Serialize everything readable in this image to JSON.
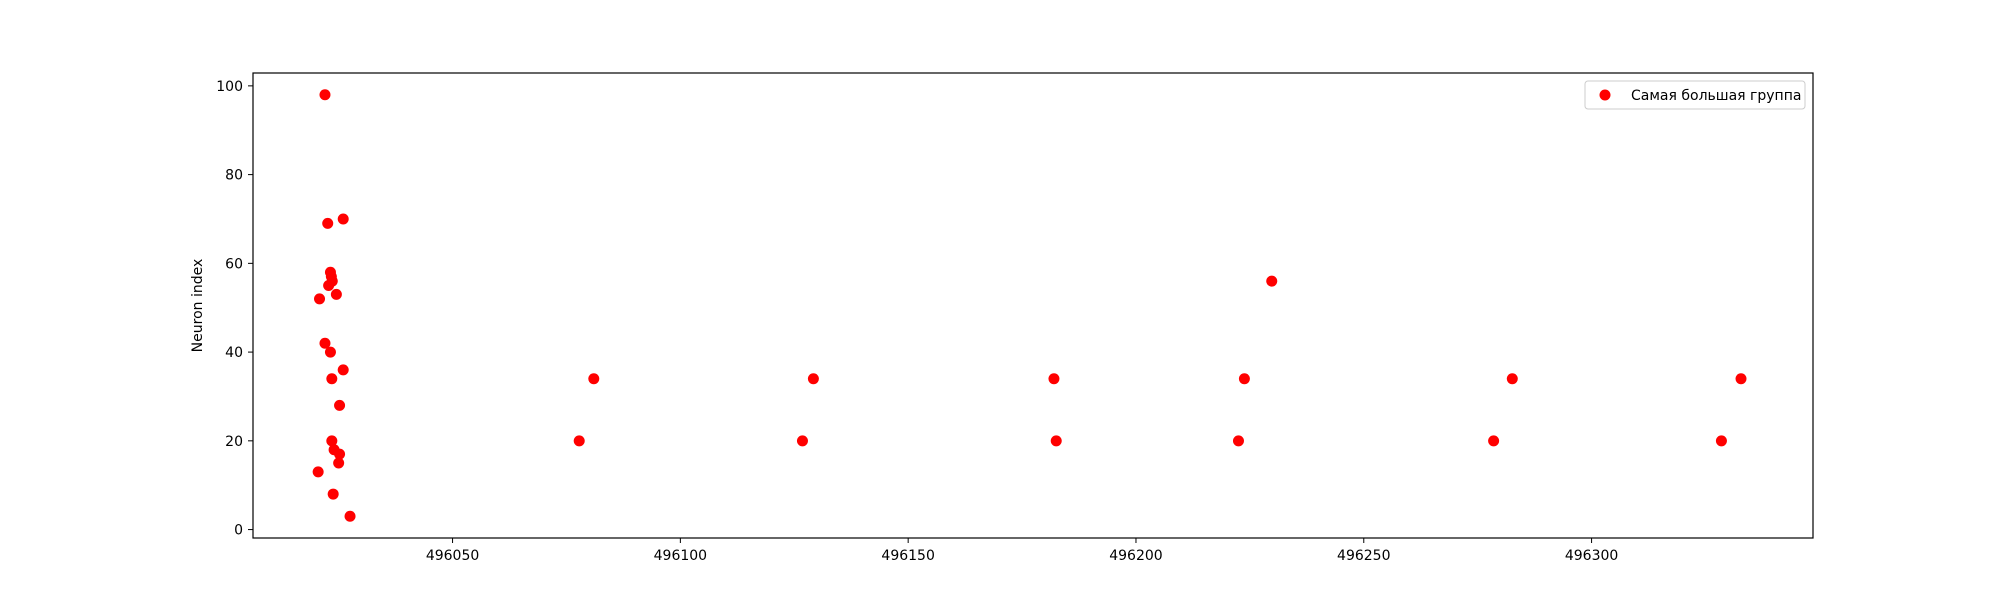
{
  "chart_data": {
    "type": "scatter",
    "title": "",
    "xlabel": "",
    "ylabel": "Neuron index",
    "xlim": [
      496006.2,
      496348.6
    ],
    "ylim": [
      -1.9,
      102.9
    ],
    "xticks": [
      496050,
      496100,
      496150,
      496200,
      496250,
      496300
    ],
    "yticks": [
      0,
      20,
      40,
      60,
      80,
      100
    ],
    "grid": false,
    "legend_position": "top-right",
    "series": [
      {
        "name": "Самая большая группа",
        "color": "#ff0000",
        "points": [
          [
            496022.0,
            98
          ],
          [
            496022.6,
            69
          ],
          [
            496026.0,
            70
          ],
          [
            496023.2,
            58
          ],
          [
            496023.4,
            57
          ],
          [
            496022.8,
            55
          ],
          [
            496023.6,
            56
          ],
          [
            496024.5,
            53
          ],
          [
            496020.8,
            52
          ],
          [
            496022.0,
            42
          ],
          [
            496023.2,
            40
          ],
          [
            496026.0,
            36
          ],
          [
            496023.5,
            34
          ],
          [
            496025.2,
            28
          ],
          [
            496023.5,
            20
          ],
          [
            496024.0,
            18
          ],
          [
            496025.2,
            17
          ],
          [
            496025.0,
            15
          ],
          [
            496020.5,
            13
          ],
          [
            496023.8,
            8
          ],
          [
            496027.5,
            3
          ],
          [
            496077.8,
            20
          ],
          [
            496081.0,
            34
          ],
          [
            496126.8,
            20
          ],
          [
            496129.2,
            34
          ],
          [
            496182.0,
            34
          ],
          [
            496182.5,
            20
          ],
          [
            496222.5,
            20
          ],
          [
            496223.8,
            34
          ],
          [
            496229.8,
            56
          ],
          [
            496278.5,
            20
          ],
          [
            496282.6,
            34
          ],
          [
            496328.5,
            20
          ],
          [
            496332.8,
            34
          ]
        ]
      }
    ]
  }
}
